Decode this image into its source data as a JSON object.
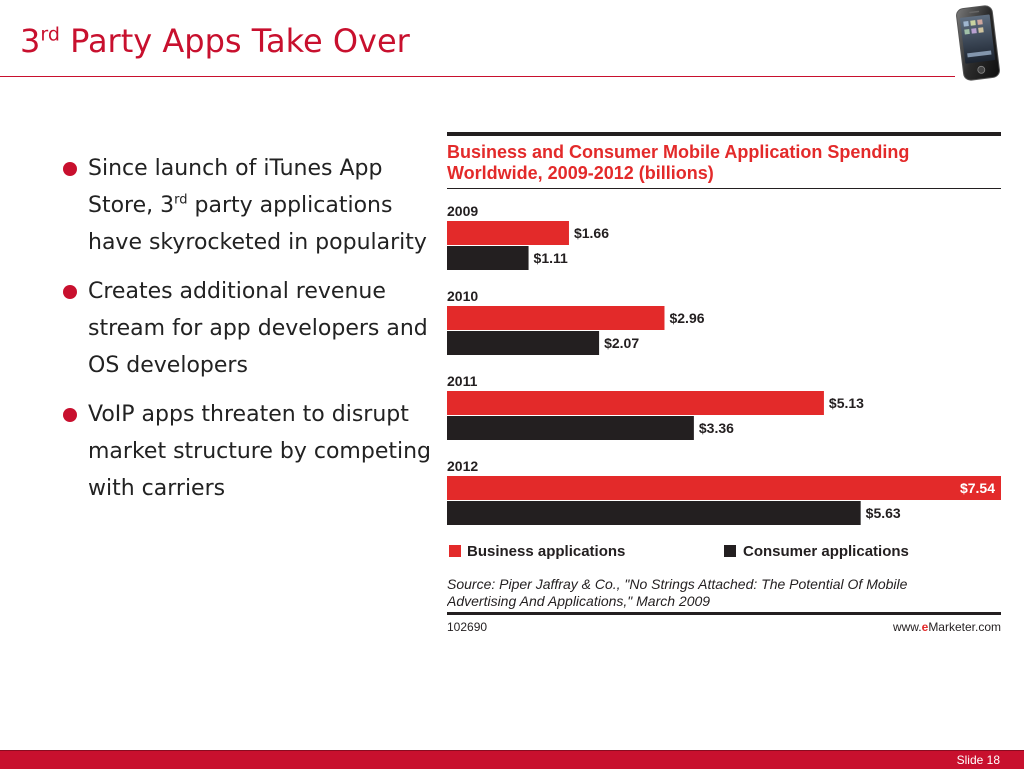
{
  "slide": {
    "title_prefix": "3",
    "title_sup": "rd",
    "title_rest": " Party Apps Take Over",
    "bullets": [
      {
        "pre": "Since launch of iTunes App Store, 3",
        "sup": "rd",
        "post": " party applications have skyrocketed in popularity"
      },
      {
        "text": "Creates additional revenue stream for app developers and OS developers"
      },
      {
        "text": "VoIP apps threaten to disrupt market structure by competing with carriers"
      }
    ],
    "slide_number": "Slide 18"
  },
  "colors": {
    "accent": "#c8102e",
    "business": "#e32a2a",
    "consumer": "#231f20"
  },
  "chart_data": {
    "type": "bar",
    "orientation": "horizontal",
    "title_line1": "Business and Consumer Mobile Application Spending",
    "title_line2": "Worldwide, 2009-2012 (billions)",
    "categories": [
      "2009",
      "2010",
      "2011",
      "2012"
    ],
    "series": [
      {
        "name": "Business applications",
        "values": [
          1.66,
          2.96,
          5.13,
          7.54
        ],
        "labels": [
          "$1.66",
          "$2.96",
          "$5.13",
          "$7.54"
        ]
      },
      {
        "name": "Consumer applications",
        "values": [
          1.11,
          2.07,
          3.36,
          5.63
        ],
        "labels": [
          "$1.11",
          "$2.07",
          "$3.36",
          "$5.63"
        ]
      }
    ],
    "source_line1": "Source: Piper Jaffray & Co., \"No Strings Attached: The Potential Of Mobile",
    "source_line2": "Advertising And Applications,\" March 2009",
    "chart_id": "102690",
    "site_prefix": "www.",
    "site_brand": "e",
    "site_rest": "Marketer.com",
    "legend_position": "bottom"
  }
}
